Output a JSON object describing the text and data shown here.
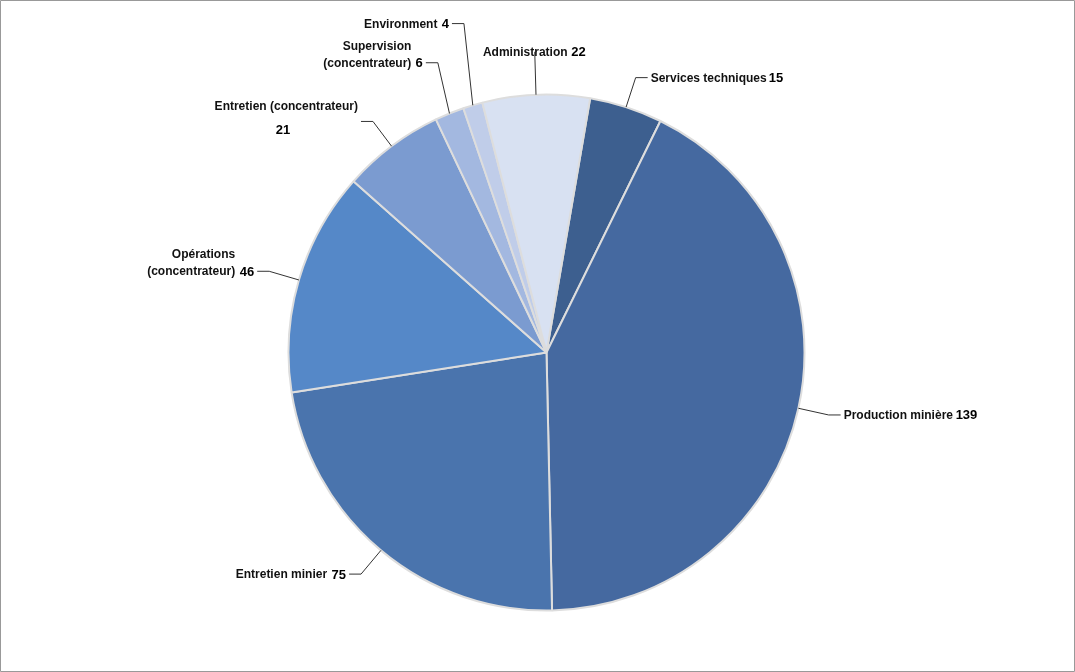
{
  "chart_data": {
    "type": "pie",
    "categories": [
      "Services techniques",
      "Production minière",
      "Entretien minier",
      "Opérations\n(concentrateur)",
      "Entretien (concentrateur)",
      "Supervision\n(concentrateur)",
      "Environment",
      "Administration"
    ],
    "values": [
      15,
      139,
      75,
      46,
      21,
      6,
      4,
      22
    ],
    "colors": [
      "#3d5f8f",
      "#4569a0",
      "#4a74ad",
      "#5588c8",
      "#7b9bd0",
      "#a3b8e0",
      "#c0cde9",
      "#d8e1f2"
    ],
    "data_labels": true
  }
}
